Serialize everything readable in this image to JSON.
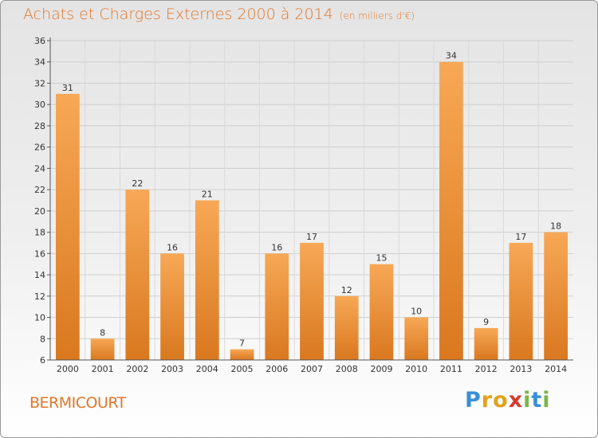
{
  "header": {
    "title": "Achats et Charges Externes 2000 à 2014",
    "unit": "(en milliers d'€)"
  },
  "footer": {
    "commune": "BERMICOURT",
    "logo": "Proxiti",
    "logo_letters": [
      {
        "ch": "P",
        "color": "#3a8fd6"
      },
      {
        "ch": "r",
        "color": "#e3a21a"
      },
      {
        "ch": "o",
        "color": "#e3a21a"
      },
      {
        "ch": "x",
        "color": "#d93a2f"
      },
      {
        "ch": "i",
        "color": "#7ab648"
      },
      {
        "ch": "t",
        "color": "#3a8fd6"
      },
      {
        "ch": "i",
        "color": "#7ab648"
      }
    ]
  },
  "colors": {
    "accent": "#e2762a",
    "bar_top": "#f7a856",
    "bar_bottom": "#d9781f"
  },
  "chart_data": {
    "type": "bar",
    "title": "Achats et Charges Externes 2000 à 2014",
    "subtitle": "(en milliers d'€)",
    "categories": [
      "2000",
      "2001",
      "2002",
      "2003",
      "2004",
      "2005",
      "2006",
      "2007",
      "2008",
      "2009",
      "2010",
      "2011",
      "2012",
      "2013",
      "2014"
    ],
    "values": [
      31,
      8,
      22,
      16,
      21,
      7,
      16,
      17,
      12,
      15,
      10,
      34,
      9,
      17,
      18
    ],
    "ylim": [
      6,
      36
    ],
    "yticks": [
      6,
      8,
      10,
      12,
      14,
      16,
      18,
      20,
      22,
      24,
      26,
      28,
      30,
      32,
      34,
      36
    ],
    "grid": true,
    "data_labels": true
  }
}
